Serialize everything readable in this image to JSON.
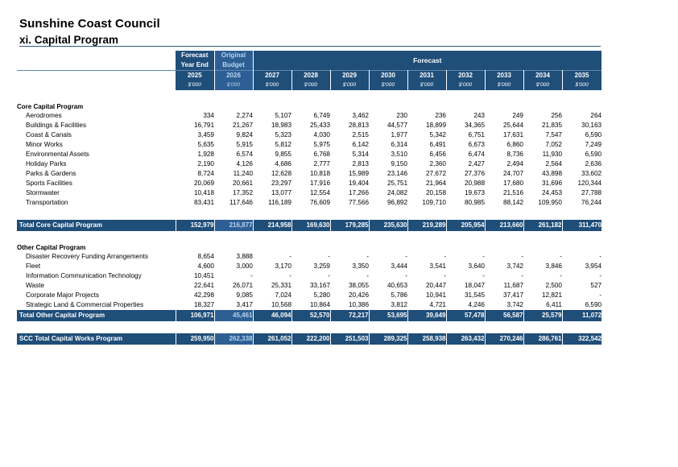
{
  "header": {
    "title": "Sunshine Coast Council",
    "subtitle": "xi. Capital Program"
  },
  "columns": {
    "forecast_label_1": "Forecast",
    "forecast_label_2": "Year End",
    "original_label_1": "Original",
    "original_label_2": "Budget",
    "forecast_group_label": "Forecast",
    "years": [
      "2025",
      "2026",
      "2027",
      "2028",
      "2029",
      "2030",
      "2031",
      "2032",
      "2033",
      "2034",
      "2035"
    ],
    "unit": "$'000"
  },
  "core": {
    "heading": "Core Capital Program",
    "rows": [
      {
        "label": "Aerodromes",
        "values": [
          "334",
          "2,274",
          "5,107",
          "6,749",
          "3,462",
          "230",
          "236",
          "243",
          "249",
          "256",
          "264"
        ]
      },
      {
        "label": "Buildings & Facilities",
        "values": [
          "16,791",
          "21,267",
          "18,983",
          "25,433",
          "28,813",
          "44,577",
          "18,899",
          "34,365",
          "25,644",
          "21,835",
          "30,163"
        ]
      },
      {
        "label": "Coast & Canals",
        "values": [
          "3,459",
          "9,824",
          "5,323",
          "4,030",
          "2,515",
          "1,977",
          "5,342",
          "6,751",
          "17,631",
          "7,547",
          "6,590"
        ]
      },
      {
        "label": "Minor Works",
        "values": [
          "5,635",
          "5,915",
          "5,812",
          "5,975",
          "6,142",
          "6,314",
          "6,491",
          "6,673",
          "6,860",
          "7,052",
          "7,249"
        ]
      },
      {
        "label": "Environmental Assets",
        "values": [
          "1,928",
          "6,574",
          "9,855",
          "6,768",
          "5,314",
          "3,510",
          "6,456",
          "6,474",
          "8,736",
          "11,930",
          "6,590"
        ]
      },
      {
        "label": "Holiday Parks",
        "values": [
          "2,190",
          "4,126",
          "4,686",
          "2,777",
          "2,813",
          "9,150",
          "2,360",
          "2,427",
          "2,494",
          "2,564",
          "2,636"
        ]
      },
      {
        "label": "Parks & Gardens",
        "values": [
          "8,724",
          "11,240",
          "12,628",
          "10,818",
          "15,989",
          "23,146",
          "27,672",
          "27,376",
          "24,707",
          "43,898",
          "33,602"
        ]
      },
      {
        "label": "Sports Facilities",
        "values": [
          "20,069",
          "20,661",
          "23,297",
          "17,916",
          "19,404",
          "25,751",
          "21,964",
          "20,988",
          "17,680",
          "31,696",
          "120,344"
        ]
      },
      {
        "label": "Stormwater",
        "values": [
          "10,418",
          "17,352",
          "13,077",
          "12,554",
          "17,266",
          "24,082",
          "20,158",
          "19,673",
          "21,516",
          "24,453",
          "27,788"
        ]
      },
      {
        "label": "Transportation",
        "values": [
          "83,431",
          "117,646",
          "116,189",
          "76,609",
          "77,566",
          "96,892",
          "109,710",
          "80,985",
          "88,142",
          "109,950",
          "76,244"
        ]
      }
    ],
    "total_label": "Total Core Capital Program",
    "total_values": [
      "152,979",
      "216,877",
      "214,958",
      "169,630",
      "179,285",
      "235,630",
      "219,289",
      "205,954",
      "213,660",
      "261,182",
      "311,470"
    ]
  },
  "other": {
    "heading": "Other Capital Program",
    "rows": [
      {
        "label": "Disaster Recovery Funding Arrangements",
        "values": [
          "8,654",
          "3,888",
          "-",
          "-",
          "-",
          "-",
          "-",
          "-",
          "-",
          "-",
          "-"
        ]
      },
      {
        "label": "Fleet",
        "values": [
          "4,600",
          "3,000",
          "3,170",
          "3,259",
          "3,350",
          "3,444",
          "3,541",
          "3,640",
          "3,742",
          "3,846",
          "3,954"
        ]
      },
      {
        "label": "Information Communication Technology",
        "values": [
          "10,451",
          "-",
          "-",
          "-",
          "-",
          "-",
          "-",
          "-",
          "-",
          "-",
          "-"
        ]
      },
      {
        "label": "Waste",
        "values": [
          "22,641",
          "26,071",
          "25,331",
          "33,167",
          "38,055",
          "40,653",
          "20,447",
          "18,047",
          "11,687",
          "2,500",
          "527"
        ]
      },
      {
        "label": "Corporate Major Projects",
        "values": [
          "42,298",
          "9,085",
          "7,024",
          "5,280",
          "20,426",
          "5,786",
          "10,941",
          "31,545",
          "37,417",
          "12,821",
          "-"
        ]
      },
      {
        "label": "Strategic Land & Commercial Properties",
        "values": [
          "18,327",
          "3,417",
          "10,568",
          "10,864",
          "10,386",
          "3,812",
          "4,721",
          "4,246",
          "3,742",
          "6,411",
          "6,590"
        ]
      }
    ],
    "total_label": "Total Other Capital Program",
    "total_values": [
      "106,971",
      "45,461",
      "46,094",
      "52,570",
      "72,217",
      "53,695",
      "39,649",
      "57,478",
      "56,587",
      "25,579",
      "11,072"
    ]
  },
  "grand_total": {
    "label": "SCC Total Capital Works Program",
    "values": [
      "259,950",
      "262,338",
      "261,052",
      "222,200",
      "251,503",
      "289,325",
      "258,938",
      "263,432",
      "270,246",
      "286,761",
      "322,542"
    ]
  }
}
